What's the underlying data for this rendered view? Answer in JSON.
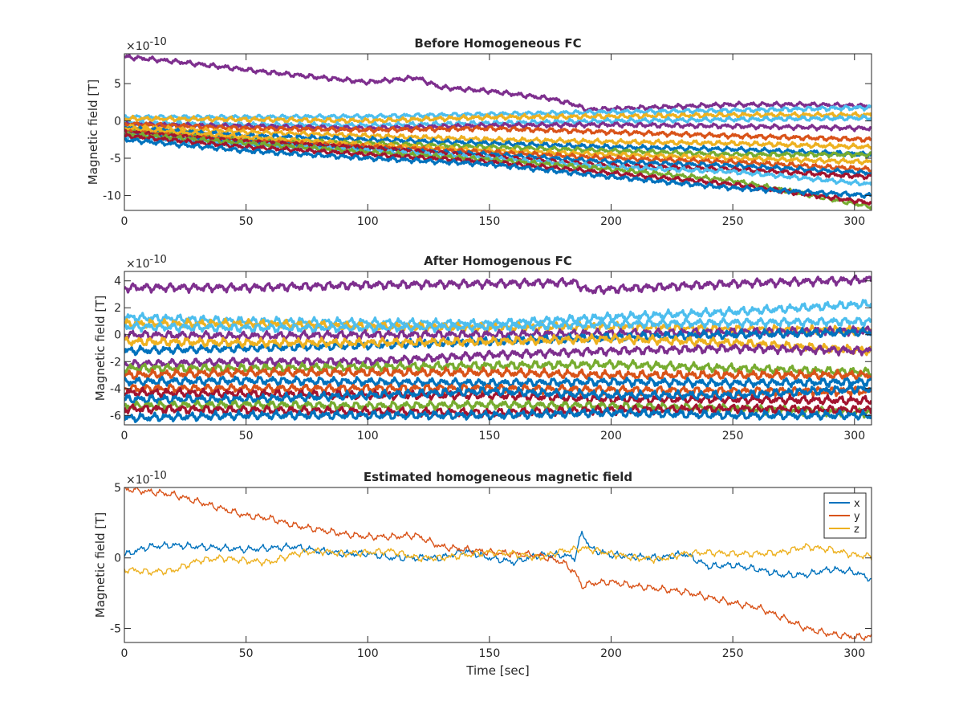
{
  "chart_data": [
    {
      "type": "line",
      "title": "Before Homogeneous FC",
      "ylabel": "Magnetic field [T]",
      "xlabel": "",
      "exponent_label": "×10",
      "exponent_power": "-10",
      "xlim": [
        0,
        307
      ],
      "ylim": [
        -12,
        9
      ],
      "xticks": [
        0,
        50,
        100,
        150,
        200,
        250,
        300
      ],
      "yticks": [
        -10,
        -5,
        0,
        5
      ],
      "grid": false,
      "sensor_channels": [
        {
          "color": "#7E2F8E",
          "x": [
            0,
            20,
            60,
            100,
            120,
            130,
            150,
            175,
            185,
            190,
            250,
            280,
            307
          ],
          "y": [
            8.6,
            8.0,
            6.5,
            5.2,
            5.8,
            4.5,
            4.0,
            3.0,
            2.2,
            1.5,
            2.2,
            2.2,
            2.0
          ]
        },
        {
          "color": "#4DBEEE",
          "x": [
            0,
            50,
            100,
            150,
            200,
            250,
            307
          ],
          "y": [
            0.5,
            0.5,
            0.6,
            0.9,
            1.2,
            1.4,
            1.8
          ]
        },
        {
          "color": "#EDB120",
          "x": [
            0,
            50,
            100,
            150,
            200,
            250,
            307
          ],
          "y": [
            0.3,
            0.2,
            0.0,
            0.5,
            0.6,
            0.8,
            0.8
          ]
        },
        {
          "color": "#4DBEEE",
          "x": [
            0,
            50,
            100,
            150,
            200,
            250,
            307
          ],
          "y": [
            -0.3,
            -0.5,
            -0.6,
            -0.3,
            0.0,
            0.2,
            0.4
          ]
        },
        {
          "color": "#7E2F8E",
          "x": [
            0,
            50,
            100,
            150,
            200,
            250,
            307
          ],
          "y": [
            -0.5,
            -0.7,
            -1.0,
            -0.6,
            -0.5,
            -0.7,
            -1.0
          ]
        },
        {
          "color": "#D95319",
          "x": [
            0,
            50,
            100,
            150,
            200,
            250,
            307
          ],
          "y": [
            -0.4,
            -1.0,
            -1.2,
            -1.0,
            -1.5,
            -2.0,
            -2.5
          ]
        },
        {
          "color": "#EDB120",
          "x": [
            0,
            50,
            100,
            150,
            200,
            250,
            307
          ],
          "y": [
            -0.8,
            -1.5,
            -2.0,
            -2.5,
            -2.8,
            -3.0,
            -3.5
          ]
        },
        {
          "color": "#0072BD",
          "x": [
            0,
            50,
            100,
            150,
            200,
            250,
            307
          ],
          "y": [
            -1.0,
            -2.0,
            -2.5,
            -3.0,
            -3.5,
            -3.8,
            -4.5
          ]
        },
        {
          "color": "#77AC30",
          "x": [
            0,
            50,
            100,
            150,
            200,
            250,
            307
          ],
          "y": [
            -1.2,
            -2.5,
            -3.0,
            -3.5,
            -4.0,
            -4.5,
            -4.5
          ]
        },
        {
          "color": "#EDB120",
          "x": [
            0,
            50,
            100,
            150,
            200,
            250,
            307
          ],
          "y": [
            -1.0,
            -2.2,
            -3.2,
            -4.0,
            -4.5,
            -5.0,
            -5.5
          ]
        },
        {
          "color": "#D95319",
          "x": [
            0,
            50,
            100,
            150,
            200,
            250,
            307
          ],
          "y": [
            -1.5,
            -2.8,
            -3.5,
            -4.2,
            -5.0,
            -5.5,
            -6.5
          ]
        },
        {
          "color": "#0072BD",
          "x": [
            0,
            50,
            100,
            150,
            200,
            250,
            307
          ],
          "y": [
            -1.8,
            -3.0,
            -3.8,
            -4.5,
            -5.5,
            -6.0,
            -7.0
          ]
        },
        {
          "color": "#A2142F",
          "x": [
            0,
            50,
            100,
            150,
            200,
            250,
            307
          ],
          "y": [
            -1.5,
            -2.8,
            -3.6,
            -4.8,
            -6.0,
            -6.5,
            -7.5
          ]
        },
        {
          "color": "#4DBEEE",
          "x": [
            0,
            50,
            100,
            150,
            200,
            250,
            307
          ],
          "y": [
            -2.0,
            -3.2,
            -4.0,
            -5.0,
            -6.2,
            -6.8,
            -8.5
          ]
        },
        {
          "color": "#77AC30",
          "x": [
            0,
            50,
            100,
            150,
            200,
            250,
            307
          ],
          "y": [
            -1.8,
            -3.0,
            -4.2,
            -5.2,
            -6.5,
            -8.0,
            -11.5
          ]
        },
        {
          "color": "#A2142F",
          "x": [
            0,
            50,
            100,
            150,
            200,
            250,
            307
          ],
          "y": [
            -2.0,
            -3.5,
            -4.5,
            -5.5,
            -7.0,
            -8.5,
            -11.0
          ]
        },
        {
          "color": "#0072BD",
          "x": [
            0,
            50,
            100,
            150,
            200,
            250,
            307
          ],
          "y": [
            -2.5,
            -4.0,
            -5.0,
            -5.8,
            -7.5,
            -9.0,
            -10.0
          ]
        }
      ]
    },
    {
      "type": "line",
      "title": "After Homogenous FC",
      "ylabel": "Magnetic field [T]",
      "xlabel": "",
      "exponent_label": "×10",
      "exponent_power": "-10",
      "xlim": [
        0,
        307
      ],
      "ylim": [
        -6.7,
        4.7
      ],
      "xticks": [
        0,
        50,
        100,
        150,
        200,
        250,
        300
      ],
      "yticks": [
        -6,
        -4,
        -2,
        0,
        2,
        4
      ],
      "grid": false,
      "sensor_channels": [
        {
          "color": "#7E2F8E",
          "x": [
            0,
            50,
            100,
            150,
            185,
            190,
            250,
            307
          ],
          "y": [
            3.5,
            3.5,
            3.7,
            3.8,
            3.9,
            3.3,
            3.8,
            4.1
          ]
        },
        {
          "color": "#4DBEEE",
          "x": [
            0,
            50,
            100,
            150,
            200,
            250,
            307
          ],
          "y": [
            1.3,
            1.0,
            0.9,
            0.8,
            1.3,
            1.7,
            2.3
          ]
        },
        {
          "color": "#EDB120",
          "x": [
            0,
            50,
            100,
            150,
            200,
            250,
            307
          ],
          "y": [
            0.8,
            0.8,
            0.6,
            0.5,
            0.6,
            0.4,
            0.3
          ]
        },
        {
          "color": "#4DBEEE",
          "x": [
            0,
            50,
            100,
            150,
            200,
            250,
            307
          ],
          "y": [
            0.6,
            0.5,
            0.5,
            0.6,
            0.8,
            0.9,
            1.0
          ]
        },
        {
          "color": "#7E2F8E",
          "x": [
            0,
            50,
            100,
            150,
            200,
            250,
            307
          ],
          "y": [
            0.0,
            -0.1,
            0.0,
            0.0,
            0.1,
            0.2,
            0.3
          ]
        },
        {
          "color": "#0072BD",
          "x": [
            0,
            50,
            100,
            150,
            200,
            250,
            307
          ],
          "y": [
            -1.2,
            -1.0,
            -0.8,
            -0.5,
            -0.2,
            0.0,
            0.2
          ]
        },
        {
          "color": "#EDB120",
          "x": [
            0,
            50,
            100,
            150,
            200,
            250,
            307
          ],
          "y": [
            -0.5,
            -0.6,
            -0.6,
            -0.5,
            -0.3,
            -0.6,
            -1.2
          ]
        },
        {
          "color": "#7E2F8E",
          "x": [
            0,
            50,
            100,
            150,
            200,
            250,
            307
          ],
          "y": [
            -2.2,
            -2.0,
            -2.0,
            -1.5,
            -1.2,
            -1.0,
            -1.2
          ]
        },
        {
          "color": "#77AC30",
          "x": [
            0,
            50,
            100,
            150,
            200,
            250,
            307
          ],
          "y": [
            -2.5,
            -2.5,
            -2.4,
            -2.3,
            -2.2,
            -2.5,
            -2.8
          ]
        },
        {
          "color": "#D95319",
          "x": [
            0,
            50,
            100,
            150,
            200,
            250,
            307
          ],
          "y": [
            -3.0,
            -2.8,
            -2.8,
            -2.8,
            -3.0,
            -3.0,
            -3.0
          ]
        },
        {
          "color": "#0072BD",
          "x": [
            0,
            50,
            100,
            150,
            200,
            250,
            307
          ],
          "y": [
            -3.5,
            -3.4,
            -3.5,
            -3.6,
            -3.5,
            -3.6,
            -3.5
          ]
        },
        {
          "color": "#D95319",
          "x": [
            0,
            50,
            100,
            150,
            200,
            250,
            307
          ],
          "y": [
            -4.0,
            -4.0,
            -4.0,
            -4.0,
            -4.1,
            -4.2,
            -4.2
          ]
        },
        {
          "color": "#A2142F",
          "x": [
            0,
            50,
            100,
            150,
            200,
            250,
            307
          ],
          "y": [
            -4.3,
            -4.4,
            -4.5,
            -4.5,
            -4.8,
            -4.8,
            -4.9
          ]
        },
        {
          "color": "#0072BD",
          "x": [
            0,
            50,
            100,
            150,
            200,
            250,
            307
          ],
          "y": [
            -4.8,
            -4.8,
            -4.5,
            -4.2,
            -4.5,
            -4.5,
            -4.0
          ]
        },
        {
          "color": "#77AC30",
          "x": [
            0,
            50,
            100,
            150,
            200,
            250,
            307
          ],
          "y": [
            -5.3,
            -5.2,
            -5.3,
            -5.2,
            -5.3,
            -5.5,
            -5.8
          ]
        },
        {
          "color": "#A2142F",
          "x": [
            0,
            50,
            100,
            150,
            200,
            250,
            307
          ],
          "y": [
            -5.5,
            -5.6,
            -5.7,
            -5.8,
            -5.6,
            -5.5,
            -5.6
          ]
        },
        {
          "color": "#0072BD",
          "x": [
            0,
            50,
            100,
            150,
            200,
            250,
            307
          ],
          "y": [
            -6.2,
            -6.0,
            -6.0,
            -6.0,
            -5.8,
            -6.0,
            -6.0
          ]
        }
      ]
    },
    {
      "type": "line",
      "title": "Estimated homogeneous magnetic field",
      "ylabel": "Magnetic field [T]",
      "xlabel": "Time [sec]",
      "exponent_label": "×10",
      "exponent_power": "-10",
      "xlim": [
        0,
        307
      ],
      "ylim": [
        -6,
        5
      ],
      "xticks": [
        0,
        50,
        100,
        150,
        200,
        250,
        300
      ],
      "yticks": [
        -5,
        0,
        5
      ],
      "grid": false,
      "legend_position": "top-right",
      "series": [
        {
          "name": "x",
          "color": "#0072BD",
          "x": [
            0,
            10,
            20,
            30,
            40,
            50,
            60,
            70,
            80,
            90,
            100,
            110,
            120,
            130,
            140,
            150,
            160,
            170,
            180,
            185,
            188,
            192,
            200,
            210,
            220,
            230,
            240,
            250,
            260,
            270,
            280,
            290,
            300,
            307
          ],
          "y": [
            0.2,
            0.8,
            0.9,
            0.8,
            0.7,
            0.6,
            0.7,
            0.8,
            0.5,
            0.3,
            0.3,
            0.0,
            0.0,
            0.0,
            0.5,
            0.0,
            -0.3,
            0.2,
            0.2,
            0.0,
            1.8,
            0.6,
            0.2,
            0.1,
            0.0,
            0.3,
            -0.6,
            -0.5,
            -0.8,
            -1.2,
            -1.2,
            -0.8,
            -1.0,
            -1.5
          ]
        },
        {
          "name": "y",
          "color": "#D95319",
          "x": [
            0,
            10,
            20,
            30,
            40,
            50,
            60,
            70,
            80,
            90,
            100,
            110,
            120,
            130,
            140,
            150,
            160,
            170,
            180,
            185,
            188,
            192,
            200,
            210,
            220,
            230,
            240,
            250,
            260,
            270,
            280,
            290,
            300,
            307
          ],
          "y": [
            4.9,
            4.7,
            4.5,
            4.0,
            3.5,
            3.0,
            2.8,
            2.3,
            2.0,
            1.7,
            1.5,
            1.5,
            1.6,
            0.8,
            0.6,
            0.4,
            0.3,
            0.2,
            -0.3,
            -1.0,
            -2.0,
            -1.8,
            -1.7,
            -2.0,
            -2.2,
            -2.4,
            -2.8,
            -3.2,
            -3.5,
            -4.2,
            -5.0,
            -5.4,
            -5.6,
            -5.6
          ]
        },
        {
          "name": "z",
          "color": "#EDB120",
          "x": [
            0,
            10,
            20,
            30,
            40,
            50,
            60,
            70,
            80,
            90,
            100,
            110,
            120,
            130,
            140,
            150,
            160,
            170,
            180,
            185,
            188,
            192,
            200,
            210,
            220,
            230,
            240,
            250,
            260,
            270,
            280,
            290,
            300,
            307
          ],
          "y": [
            -0.8,
            -1.0,
            -0.9,
            -0.2,
            0.0,
            -0.2,
            -0.3,
            0.3,
            0.5,
            0.3,
            0.4,
            0.5,
            0.0,
            0.0,
            0.2,
            0.4,
            0.3,
            0.0,
            0.5,
            0.6,
            0.7,
            0.6,
            0.3,
            0.0,
            -0.1,
            0.3,
            0.4,
            0.3,
            0.3,
            0.4,
            0.8,
            0.6,
            0.2,
            0.1
          ]
        }
      ]
    }
  ]
}
